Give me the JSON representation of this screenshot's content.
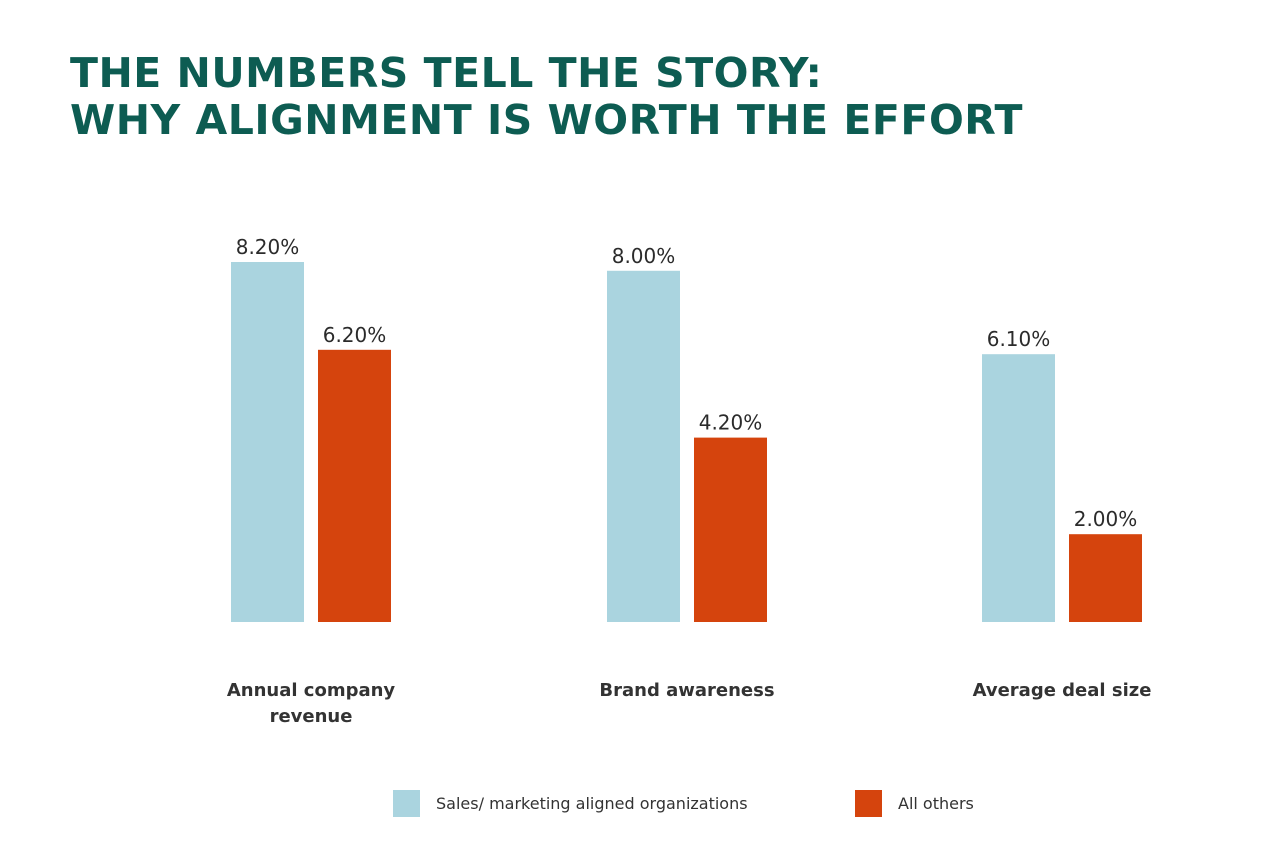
{
  "header": {
    "title_line1": "THE NUMBERS TELL THE STORY:",
    "title_line2": "WHY ALIGNMENT IS WORTH THE EFFORT"
  },
  "colors": {
    "title": "#0d5c52",
    "series_aligned": "#aad4df",
    "series_others": "#d5440d",
    "value_label": "#2b2b2b",
    "category_label": "#333333"
  },
  "legend": {
    "aligned_label": "Sales/ marketing aligned organizations",
    "others_label": "All others"
  },
  "chart_data": {
    "type": "bar",
    "title": "THE NUMBERS TELL THE STORY: WHY ALIGNMENT IS WORTH THE EFFORT",
    "categories": [
      [
        "Annual company",
        "revenue"
      ],
      [
        "Brand awareness"
      ],
      [
        "Average deal size"
      ]
    ],
    "series": [
      {
        "name": "Sales/ marketing aligned organizations",
        "values": [
          8.2,
          8.0,
          6.1
        ],
        "labels": [
          "8.20%",
          "8.00%",
          "6.10%"
        ]
      },
      {
        "name": "All others",
        "values": [
          6.2,
          4.2,
          2.0
        ],
        "labels": [
          "6.20%",
          "4.20%",
          "2.00%"
        ]
      }
    ],
    "xlabel": "",
    "ylabel": "",
    "ylim": [
      0,
      8.2
    ],
    "grid": false,
    "legend_position": "bottom"
  }
}
